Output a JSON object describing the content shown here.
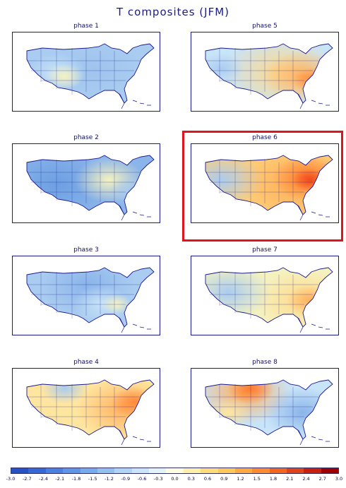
{
  "title": "T composites (JFM)",
  "panels": [
    {
      "id": "phase1",
      "label": "phase 1",
      "base": "#aaccf0",
      "blobs": [
        [
          "#9ec4ee",
          0.55,
          0.45,
          0.25
        ],
        [
          "#c8e4f8",
          0.3,
          0.5,
          0.15
        ],
        [
          "#f5f2c0",
          0.35,
          0.55,
          0.1
        ]
      ]
    },
    {
      "id": "phase5",
      "label": "phase 5",
      "base": "#c8e4f8",
      "blobs": [
        [
          "#ffd98a",
          0.6,
          0.5,
          0.3
        ],
        [
          "#ffb060",
          0.75,
          0.55,
          0.2
        ],
        [
          "#ff8a3a",
          0.82,
          0.6,
          0.1
        ],
        [
          "#aaccf0",
          0.2,
          0.45,
          0.12
        ]
      ]
    },
    {
      "id": "phase2",
      "label": "phase 2",
      "base": "#8ab4ea",
      "blobs": [
        [
          "#6c9fe2",
          0.3,
          0.5,
          0.28
        ],
        [
          "#f5f2c0",
          0.65,
          0.45,
          0.18
        ],
        [
          "#aaccf0",
          0.8,
          0.6,
          0.12
        ]
      ]
    },
    {
      "id": "phase6",
      "label": "phase 6",
      "base": "#ffcf7a",
      "blobs": [
        [
          "#ffae56",
          0.7,
          0.5,
          0.3
        ],
        [
          "#ff7a2e",
          0.78,
          0.42,
          0.18
        ],
        [
          "#f04a1e",
          0.8,
          0.45,
          0.09
        ],
        [
          "#aaccf0",
          0.2,
          0.45,
          0.22
        ]
      ]
    },
    {
      "id": "phase3",
      "label": "phase 3",
      "base": "#aaccf0",
      "blobs": [
        [
          "#8ab4ea",
          0.5,
          0.35,
          0.25
        ],
        [
          "#c8e4f8",
          0.6,
          0.6,
          0.15
        ],
        [
          "#f5f2c0",
          0.7,
          0.6,
          0.08
        ]
      ]
    },
    {
      "id": "phase7",
      "label": "phase 7",
      "base": "#f5f2c0",
      "blobs": [
        [
          "#ffd98a",
          0.75,
          0.55,
          0.25
        ],
        [
          "#ffb060",
          0.8,
          0.55,
          0.12
        ],
        [
          "#aaccf0",
          0.25,
          0.45,
          0.22
        ]
      ]
    },
    {
      "id": "phase4",
      "label": "phase 4",
      "base": "#ffe6a0",
      "blobs": [
        [
          "#ffb060",
          0.75,
          0.5,
          0.25
        ],
        [
          "#ff8a3a",
          0.82,
          0.42,
          0.12
        ],
        [
          "#aaccf0",
          0.35,
          0.25,
          0.12
        ]
      ]
    },
    {
      "id": "phase8",
      "label": "phase 8",
      "base": "#c8e4f8",
      "blobs": [
        [
          "#ffb060",
          0.35,
          0.3,
          0.25
        ],
        [
          "#ff7a2e",
          0.4,
          0.25,
          0.12
        ],
        [
          "#8ab4ea",
          0.75,
          0.55,
          0.2
        ],
        [
          "#ffe6a0",
          0.25,
          0.55,
          0.12
        ]
      ]
    }
  ],
  "colorbar": {
    "colors": [
      "#2650c8",
      "#3468d8",
      "#4a80e0",
      "#5e95e6",
      "#78abec",
      "#94c0f0",
      "#b0d4f4",
      "#cae4f8",
      "#e4f2fa",
      "#fffce0",
      "#fff0a8",
      "#ffdc78",
      "#ffc858",
      "#ffaa40",
      "#ff8a30",
      "#f46620",
      "#e04418",
      "#c8200c",
      "#a00000"
    ],
    "labels": [
      "-3.0",
      "-2.7",
      "-2.4",
      "-2.1",
      "-1.8",
      "-1.5",
      "-1.2",
      "-0.9",
      "-0.6",
      "-0.3",
      "0.0",
      "0.3",
      "0.6",
      "0.9",
      "1.2",
      "1.5",
      "1.8",
      "2.1",
      "2.4",
      "2.7",
      "3.0"
    ]
  },
  "highlighted_panel": "phase 6",
  "highlight_color": "#e0141c"
}
